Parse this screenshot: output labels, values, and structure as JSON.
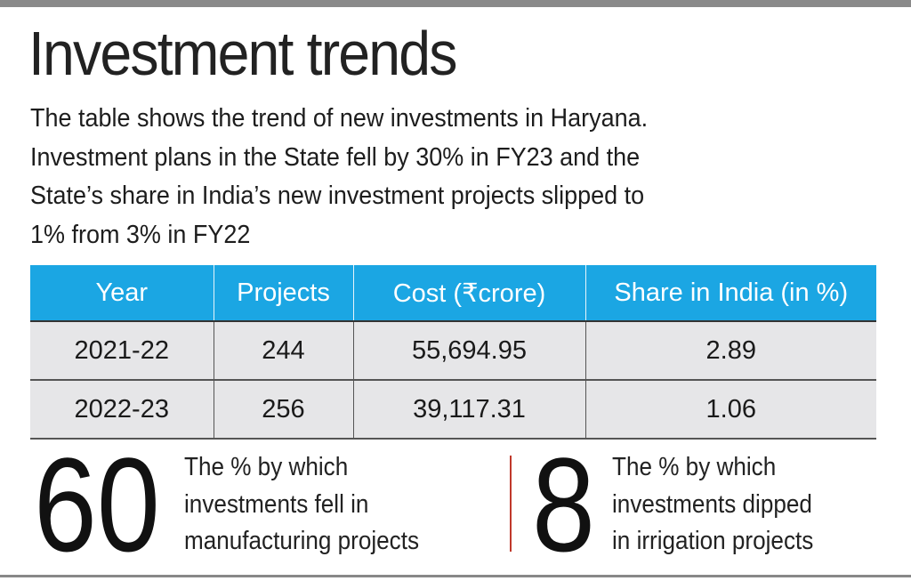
{
  "title": "Investment trends",
  "description": [
    "The table shows the trend of new investments in Haryana.",
    "Investment plans in the State fell by 30% in FY23 and the",
    "State’s share in India’s new investment projects slipped to",
    "1% from 3% in FY22"
  ],
  "table": {
    "headers": [
      "Year",
      "Projects",
      "Cost (₹crore)",
      "Share in India (in %)"
    ],
    "rows": [
      [
        "2021-22",
        "244",
        "55,694.95",
        "2.89"
      ],
      [
        "2022-23",
        "256",
        "39,117.31",
        "1.06"
      ]
    ]
  },
  "stats": [
    {
      "value": "60",
      "lines": [
        "The % by which",
        "investments fell in",
        "manufacturing projects"
      ]
    },
    {
      "value": "8",
      "lines": [
        "The % by which",
        "investments dipped",
        "in irrigation projects"
      ]
    }
  ],
  "colors": {
    "header": "#1ba6e3",
    "row": "#e6e6e8",
    "divider": "#c0392b"
  }
}
